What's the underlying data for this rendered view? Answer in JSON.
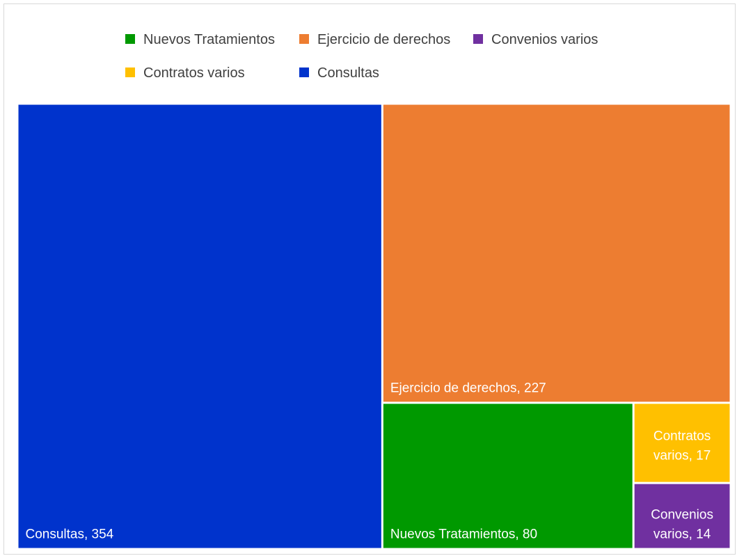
{
  "chart_data": {
    "type": "treemap",
    "legend_position": "top",
    "series": [
      {
        "name": "Consultas",
        "value": 354,
        "color": "#0033cc",
        "label": "Consultas, 354"
      },
      {
        "name": "Ejercicio de derechos",
        "value": 227,
        "color": "#ed7d31",
        "label": "Ejercicio de derechos, 227"
      },
      {
        "name": "Nuevos Tratamientos",
        "value": 80,
        "color": "#009900",
        "label": "Nuevos Tratamientos, 80"
      },
      {
        "name": "Contratos varios",
        "value": 17,
        "color": "#ffc000",
        "label": "Contratos varios, 17"
      },
      {
        "name": "Convenios varios",
        "value": 14,
        "color": "#7030a0",
        "label": "Convenios varios, 14"
      }
    ],
    "legend_order": [
      "Nuevos Tratamientos",
      "Ejercicio de derechos",
      "Convenios varios",
      "Contratos varios",
      "Consultas"
    ]
  }
}
